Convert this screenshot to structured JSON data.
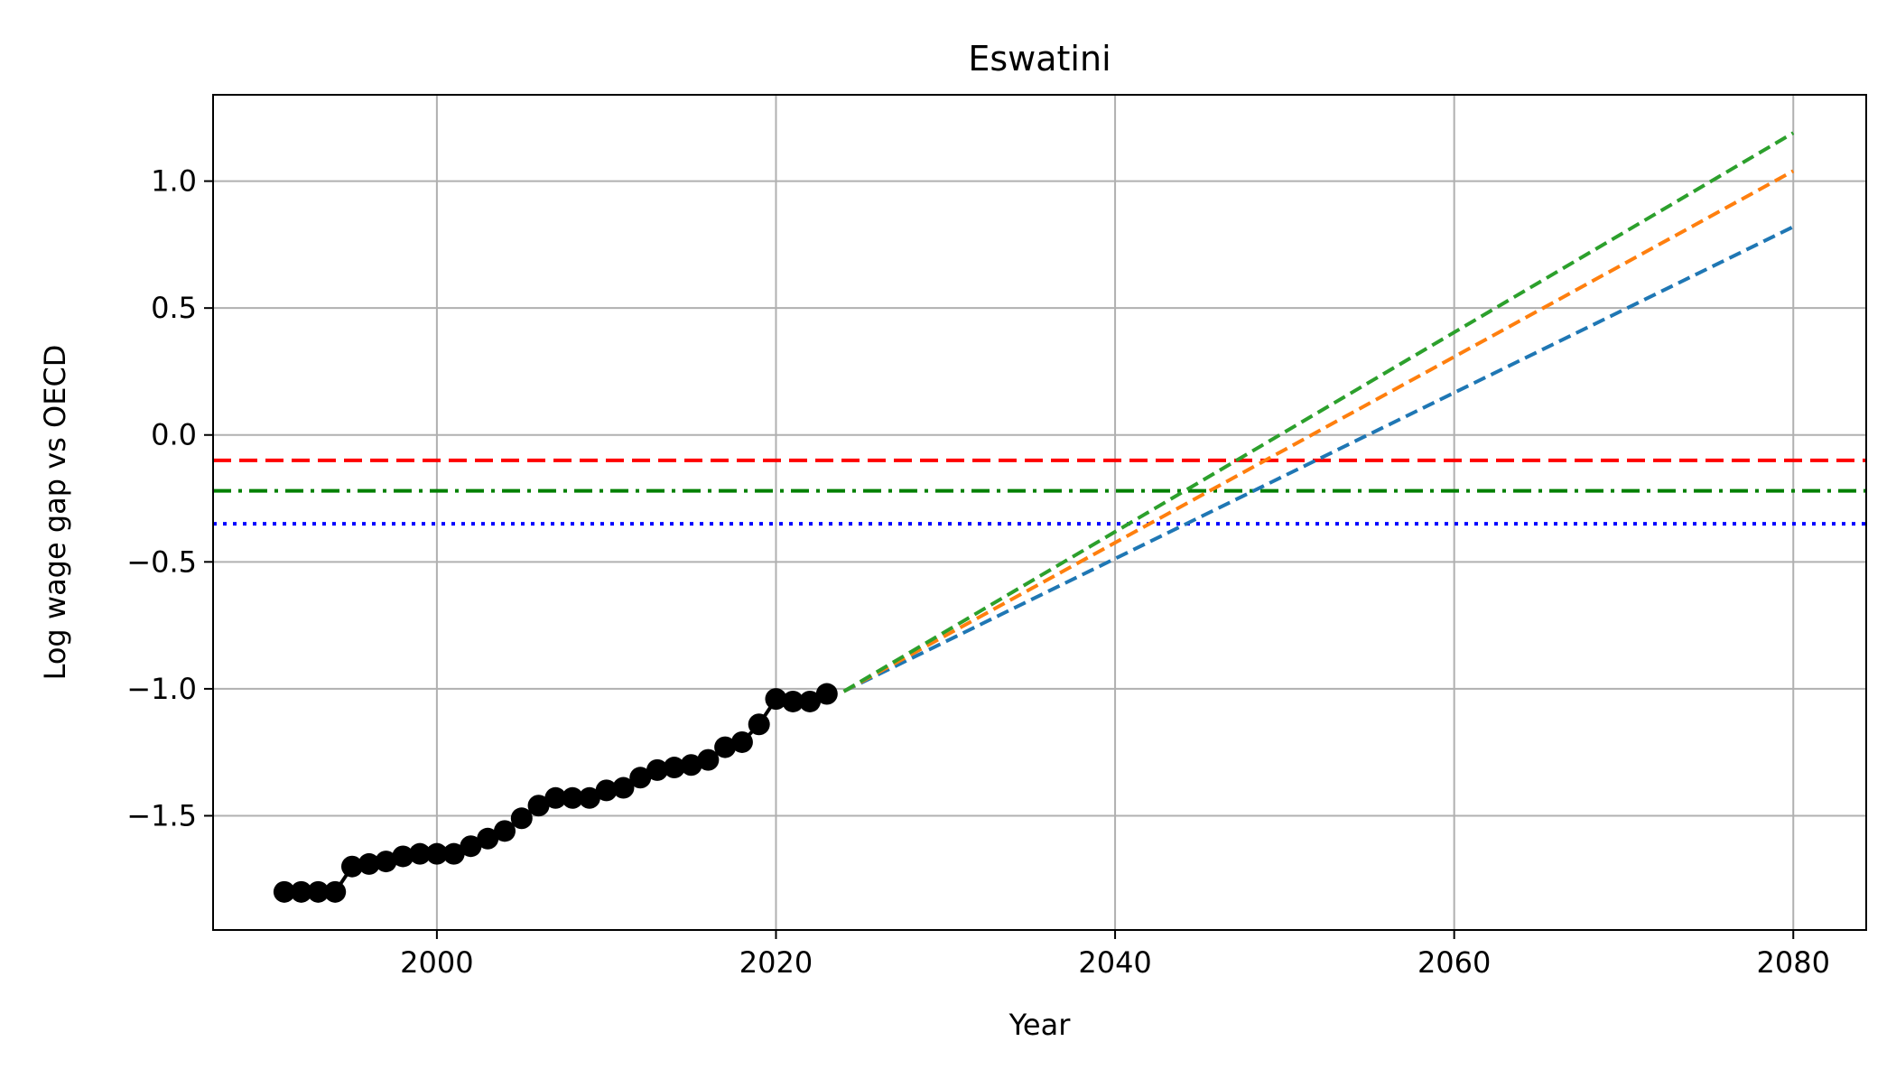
{
  "chart_data": {
    "type": "line",
    "title": "Eswatini",
    "xlabel": "Year",
    "ylabel": "Log wage gap vs OECD",
    "xlim": [
      1986.8,
      2084.3
    ],
    "ylim": [
      -1.95,
      1.34
    ],
    "x_ticks": [
      2000,
      2020,
      2040,
      2060,
      2080
    ],
    "x_tick_labels": [
      "2000",
      "2020",
      "2040",
      "2060",
      "2080"
    ],
    "y_ticks": [
      1.0,
      0.5,
      0.0,
      -0.5,
      -1.0,
      -1.5
    ],
    "y_tick_labels": [
      "1.0",
      "0.5",
      "0.0",
      "−0.5",
      "−1.0",
      "−1.5"
    ],
    "grid": true,
    "legend": false,
    "observed": {
      "color": "#000000",
      "marker": "circle",
      "x": [
        1991,
        1992,
        1993,
        1994,
        1995,
        1996,
        1997,
        1998,
        1999,
        2000,
        2001,
        2002,
        2003,
        2004,
        2005,
        2006,
        2007,
        2008,
        2009,
        2010,
        2011,
        2012,
        2013,
        2014,
        2015,
        2016,
        2017,
        2018,
        2019,
        2020,
        2021,
        2022,
        2023
      ],
      "y": [
        -1.8,
        -1.8,
        -1.8,
        -1.8,
        -1.7,
        -1.69,
        -1.68,
        -1.66,
        -1.65,
        -1.65,
        -1.65,
        -1.62,
        -1.59,
        -1.56,
        -1.51,
        -1.46,
        -1.43,
        -1.43,
        -1.43,
        -1.4,
        -1.39,
        -1.35,
        -1.32,
        -1.31,
        -1.3,
        -1.28,
        -1.23,
        -1.21,
        -1.14,
        -1.04,
        -1.05,
        -1.05,
        -1.02
      ]
    },
    "projections": [
      {
        "color": "#1f77b4",
        "style": "dashed",
        "x": [
          2024,
          2080
        ],
        "y": [
          -1.01,
          0.82
        ]
      },
      {
        "color": "#ff7f0e",
        "style": "dashed",
        "x": [
          2024,
          2080
        ],
        "y": [
          -1.01,
          1.04
        ]
      },
      {
        "color": "#2ca02c",
        "style": "dashed",
        "x": [
          2024,
          2080
        ],
        "y": [
          -1.01,
          1.19
        ]
      }
    ],
    "reference_lines": [
      {
        "color": "#ff0000",
        "style": "dashed",
        "y": -0.1
      },
      {
        "color": "#008000",
        "style": "dashdot",
        "y": -0.22
      },
      {
        "color": "#0000ff",
        "style": "dotted",
        "y": -0.35
      }
    ]
  }
}
